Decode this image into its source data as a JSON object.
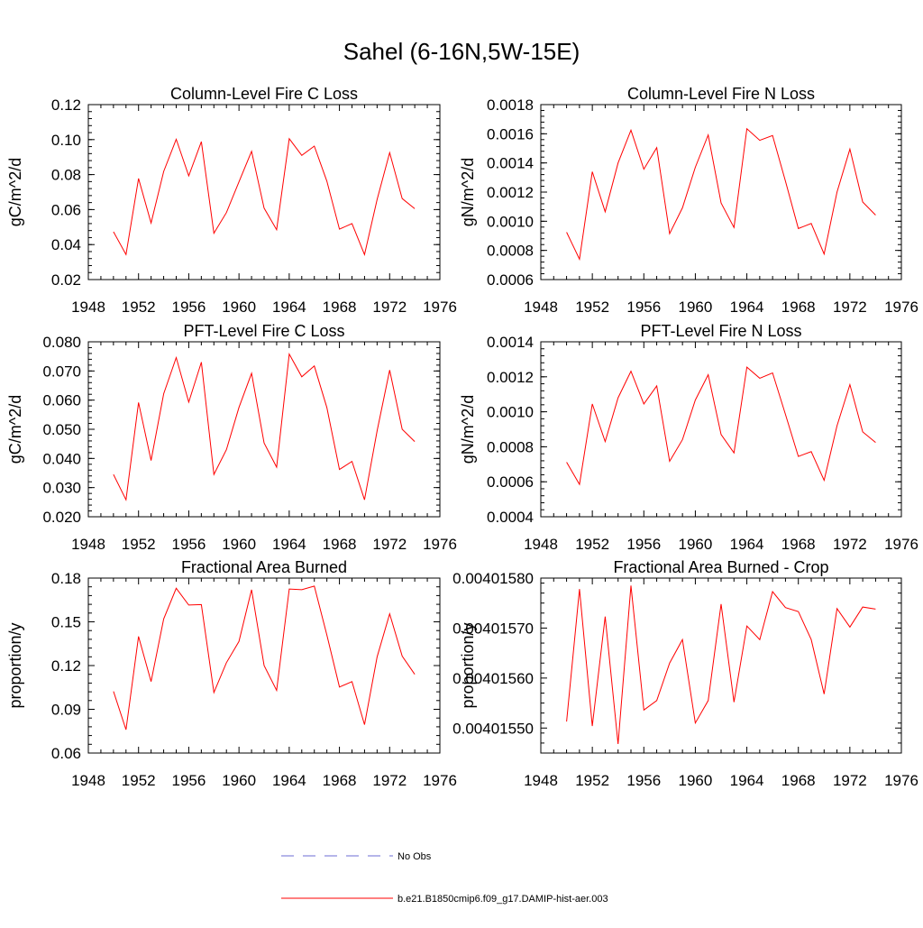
{
  "figure": {
    "title": "Sahel (6-16N,5W-15E)"
  },
  "legend": {
    "entries": [
      {
        "label": "No Obs",
        "color": "#6b6bd6",
        "dash": "dashed"
      },
      {
        "label": "b.e21.B1850cmip6.f09_g17.DAMIP-hist-aer.003",
        "color": "#ff0000",
        "dash": "solid"
      }
    ]
  },
  "chart_data": [
    {
      "type": "line",
      "title": "Column-Level Fire C Loss",
      "ylabel": "gC/m^2/d",
      "xlim": [
        1948,
        1976
      ],
      "ylim": [
        0.02,
        0.12
      ],
      "xticks": [
        1948,
        1952,
        1956,
        1960,
        1964,
        1968,
        1972,
        1976
      ],
      "yticks": [
        "0.02",
        "0.04",
        "0.06",
        "0.08",
        "0.10",
        "0.12"
      ],
      "x": [
        1950,
        1951,
        1952,
        1953,
        1954,
        1955,
        1956,
        1957,
        1958,
        1959,
        1960,
        1961,
        1962,
        1963,
        1964,
        1965,
        1966,
        1967,
        1968,
        1969,
        1970,
        1971,
        1972,
        1973,
        1974
      ],
      "series": [
        {
          "color": "#ff0000",
          "values": [
            0.0473,
            0.0343,
            0.0778,
            0.0523,
            0.0818,
            0.1002,
            0.0793,
            0.0988,
            0.0465,
            0.0583,
            0.0758,
            0.0933,
            0.0608,
            0.0485,
            0.1005,
            0.091,
            0.0963,
            0.0763,
            0.0488,
            0.052,
            0.0343,
            0.0658,
            0.0925,
            0.0663,
            0.0605
          ]
        }
      ]
    },
    {
      "type": "line",
      "title": "Column-Level Fire N Loss",
      "ylabel": "gN/m^2/d",
      "xlim": [
        1948,
        1976
      ],
      "ylim": [
        0.0006,
        0.0018
      ],
      "xticks": [
        1948,
        1952,
        1956,
        1960,
        1964,
        1968,
        1972,
        1976
      ],
      "yticks": [
        "0.0006",
        "0.0008",
        "0.0010",
        "0.0012",
        "0.0014",
        "0.0016",
        "0.0018"
      ],
      "x": [
        1950,
        1951,
        1952,
        1953,
        1954,
        1955,
        1956,
        1957,
        1958,
        1959,
        1960,
        1961,
        1962,
        1963,
        1964,
        1965,
        1966,
        1967,
        1968,
        1969,
        1970,
        1971,
        1972,
        1973,
        1974
      ],
      "series": [
        {
          "color": "#ff0000",
          "values": [
            0.000925,
            0.00074,
            0.00134,
            0.001065,
            0.0014,
            0.001625,
            0.001357,
            0.001505,
            0.000915,
            0.001092,
            0.00137,
            0.001592,
            0.001125,
            0.000957,
            0.001635,
            0.001555,
            0.001588,
            0.001275,
            0.00095,
            0.000985,
            0.000775,
            0.0012,
            0.001495,
            0.001132,
            0.001042
          ]
        }
      ]
    },
    {
      "type": "line",
      "title": "PFT-Level Fire C Loss",
      "ylabel": "gC/m^2/d",
      "xlim": [
        1948,
        1976
      ],
      "ylim": [
        0.02,
        0.08
      ],
      "xticks": [
        1948,
        1952,
        1956,
        1960,
        1964,
        1968,
        1972,
        1976
      ],
      "yticks": [
        "0.020",
        "0.030",
        "0.040",
        "0.050",
        "0.060",
        "0.070",
        "0.080"
      ],
      "x": [
        1950,
        1951,
        1952,
        1953,
        1954,
        1955,
        1956,
        1957,
        1958,
        1959,
        1960,
        1961,
        1962,
        1963,
        1964,
        1965,
        1966,
        1967,
        1968,
        1969,
        1970,
        1971,
        1972,
        1973,
        1974
      ],
      "series": [
        {
          "color": "#ff0000",
          "values": [
            0.0345,
            0.0258,
            0.0592,
            0.0393,
            0.0622,
            0.0746,
            0.0593,
            0.073,
            0.0345,
            0.043,
            0.0575,
            0.0692,
            0.0453,
            0.037,
            0.0758,
            0.068,
            0.0717,
            0.0575,
            0.0362,
            0.039,
            0.0258,
            0.0495,
            0.0703,
            0.05,
            0.0458
          ]
        }
      ]
    },
    {
      "type": "line",
      "title": "PFT-Level Fire N Loss",
      "ylabel": "gN/m^2/d",
      "xlim": [
        1948,
        1976
      ],
      "ylim": [
        0.0004,
        0.0014
      ],
      "xticks": [
        1948,
        1952,
        1956,
        1960,
        1964,
        1968,
        1972,
        1976
      ],
      "yticks": [
        "0.0004",
        "0.0006",
        "0.0008",
        "0.0010",
        "0.0012",
        "0.0014"
      ],
      "x": [
        1950,
        1951,
        1952,
        1953,
        1954,
        1955,
        1956,
        1957,
        1958,
        1959,
        1960,
        1961,
        1962,
        1963,
        1964,
        1965,
        1966,
        1967,
        1968,
        1969,
        1970,
        1971,
        1972,
        1973,
        1974
      ],
      "series": [
        {
          "color": "#ff0000",
          "values": [
            0.000712,
            0.000585,
            0.001045,
            0.00083,
            0.00108,
            0.001232,
            0.001045,
            0.001148,
            0.000717,
            0.00084,
            0.001067,
            0.001212,
            0.00087,
            0.000765,
            0.001255,
            0.001192,
            0.001222,
            0.000985,
            0.000745,
            0.000772,
            0.000608,
            0.00092,
            0.001155,
            0.000885,
            0.000825
          ]
        }
      ]
    },
    {
      "type": "line",
      "title": "Fractional Area Burned",
      "ylabel": "proportion/y",
      "xlim": [
        1948,
        1976
      ],
      "ylim": [
        0.06,
        0.18
      ],
      "xticks": [
        1948,
        1952,
        1956,
        1960,
        1964,
        1968,
        1972,
        1976
      ],
      "yticks": [
        "0.06",
        "0.09",
        "0.12",
        "0.15",
        "0.18"
      ],
      "x": [
        1950,
        1951,
        1952,
        1953,
        1954,
        1955,
        1956,
        1957,
        1958,
        1959,
        1960,
        1961,
        1962,
        1963,
        1964,
        1965,
        1966,
        1967,
        1968,
        1969,
        1970,
        1971,
        1972,
        1973,
        1974
      ],
      "series": [
        {
          "color": "#ff0000",
          "values": [
            0.1023,
            0.076,
            0.14,
            0.109,
            0.152,
            0.173,
            0.1615,
            0.1618,
            0.1015,
            0.122,
            0.1365,
            0.172,
            0.12,
            0.103,
            0.1725,
            0.172,
            0.1745,
            0.141,
            0.1053,
            0.109,
            0.0795,
            0.126,
            0.1555,
            0.1265,
            0.114
          ]
        }
      ]
    },
    {
      "type": "line",
      "title": "Fractional Area Burned - Crop",
      "ylabel": "proportion/y",
      "xlim": [
        1948,
        1976
      ],
      "ylim": [
        0.00401545,
        0.0040158
      ],
      "xticks": [
        1948,
        1952,
        1956,
        1960,
        1964,
        1968,
        1972,
        1976
      ],
      "yticks": [
        "0.00401550",
        "0.00401560",
        "0.00401570",
        "0.00401580"
      ],
      "x": [
        1950,
        1951,
        1952,
        1953,
        1954,
        1955,
        1956,
        1957,
        1958,
        1959,
        1960,
        1961,
        1962,
        1963,
        1964,
        1965,
        1966,
        1967,
        1968,
        1969,
        1970,
        1971,
        1972,
        1973,
        1974
      ],
      "series": [
        {
          "color": "#ff0000",
          "values": [
            0.004015513,
            0.004015778,
            0.004015504,
            0.004015723,
            0.004015468,
            0.004015785,
            0.004015536,
            0.004015555,
            0.00401563,
            0.004015677,
            0.00401551,
            0.004015555,
            0.004015748,
            0.004015552,
            0.004015704,
            0.004015677,
            0.004015773,
            0.004015741,
            0.004015733,
            0.004015677,
            0.004015568,
            0.004015739,
            0.004015702,
            0.004015742,
            0.004015738
          ]
        }
      ]
    }
  ]
}
